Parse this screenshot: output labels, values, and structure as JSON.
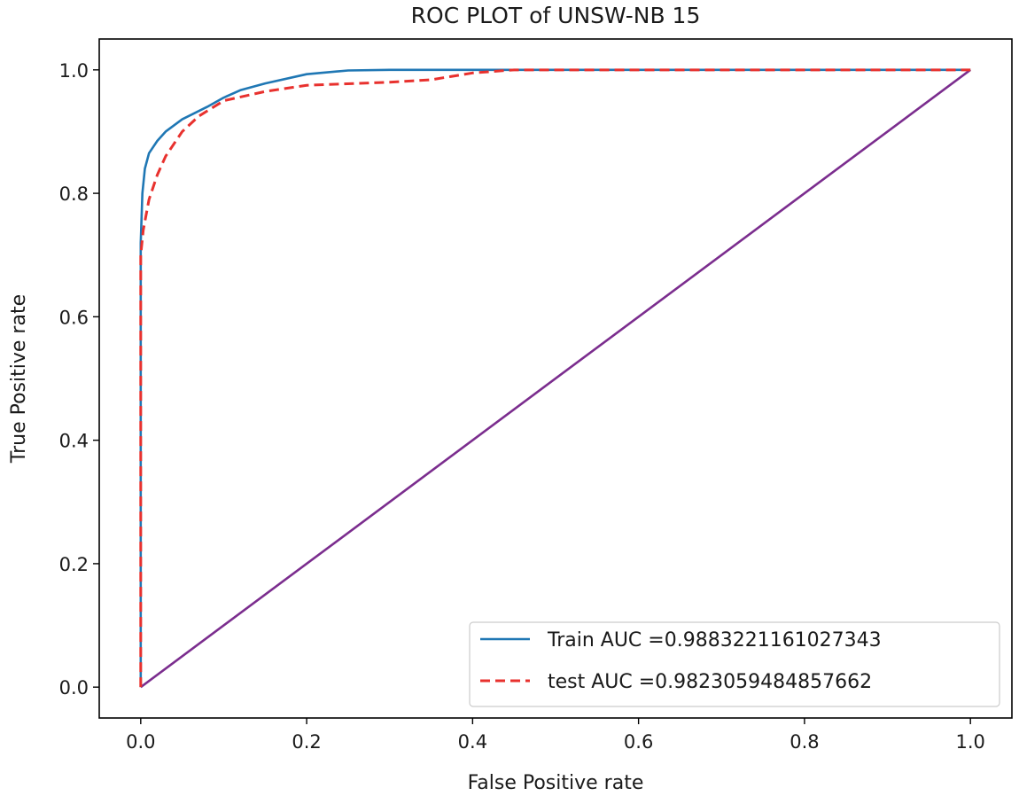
{
  "chart_data": {
    "type": "line",
    "title": "ROC PLOT of UNSW-NB 15",
    "xlabel": "False Positive rate",
    "ylabel": "True Positive rate",
    "xlim": [
      -0.05,
      1.05
    ],
    "ylim": [
      -0.05,
      1.05
    ],
    "xticks": [
      0.0,
      0.2,
      0.4,
      0.6,
      0.8,
      1.0
    ],
    "xtick_labels": [
      "0.0",
      "0.2",
      "0.4",
      "0.6",
      "0.8",
      "1.0"
    ],
    "yticks": [
      0.0,
      0.2,
      0.4,
      0.6,
      0.8,
      1.0
    ],
    "ytick_labels": [
      "0.0",
      "0.2",
      "0.4",
      "0.6",
      "0.8",
      "1.0"
    ],
    "grid": false,
    "legend_position": "lower-right",
    "series": [
      {
        "name": "Train AUC =0.9883221161027343",
        "color": "#1f77b4",
        "style": "solid",
        "points": [
          [
            0.0,
            0.0
          ],
          [
            0.0,
            0.72
          ],
          [
            0.002,
            0.8
          ],
          [
            0.005,
            0.84
          ],
          [
            0.01,
            0.865
          ],
          [
            0.02,
            0.885
          ],
          [
            0.03,
            0.9
          ],
          [
            0.05,
            0.92
          ],
          [
            0.08,
            0.94
          ],
          [
            0.1,
            0.955
          ],
          [
            0.12,
            0.967
          ],
          [
            0.15,
            0.978
          ],
          [
            0.2,
            0.993
          ],
          [
            0.25,
            0.999
          ],
          [
            0.3,
            1.0
          ],
          [
            0.5,
            1.0
          ],
          [
            1.0,
            1.0
          ]
        ]
      },
      {
        "name": "test AUC =0.9823059484857662",
        "color": "#e8312e",
        "style": "dashed",
        "points": [
          [
            0.0,
            0.0
          ],
          [
            0.0,
            0.7
          ],
          [
            0.003,
            0.74
          ],
          [
            0.01,
            0.79
          ],
          [
            0.02,
            0.83
          ],
          [
            0.03,
            0.86
          ],
          [
            0.05,
            0.9
          ],
          [
            0.07,
            0.925
          ],
          [
            0.1,
            0.95
          ],
          [
            0.15,
            0.965
          ],
          [
            0.2,
            0.975
          ],
          [
            0.3,
            0.98
          ],
          [
            0.35,
            0.984
          ],
          [
            0.4,
            0.995
          ],
          [
            0.45,
            1.0
          ],
          [
            1.0,
            1.0
          ]
        ]
      },
      {
        "name": "",
        "color": "#7b2d8e",
        "style": "solid",
        "points": [
          [
            0.0,
            0.0
          ],
          [
            1.0,
            1.0
          ]
        ]
      }
    ]
  }
}
